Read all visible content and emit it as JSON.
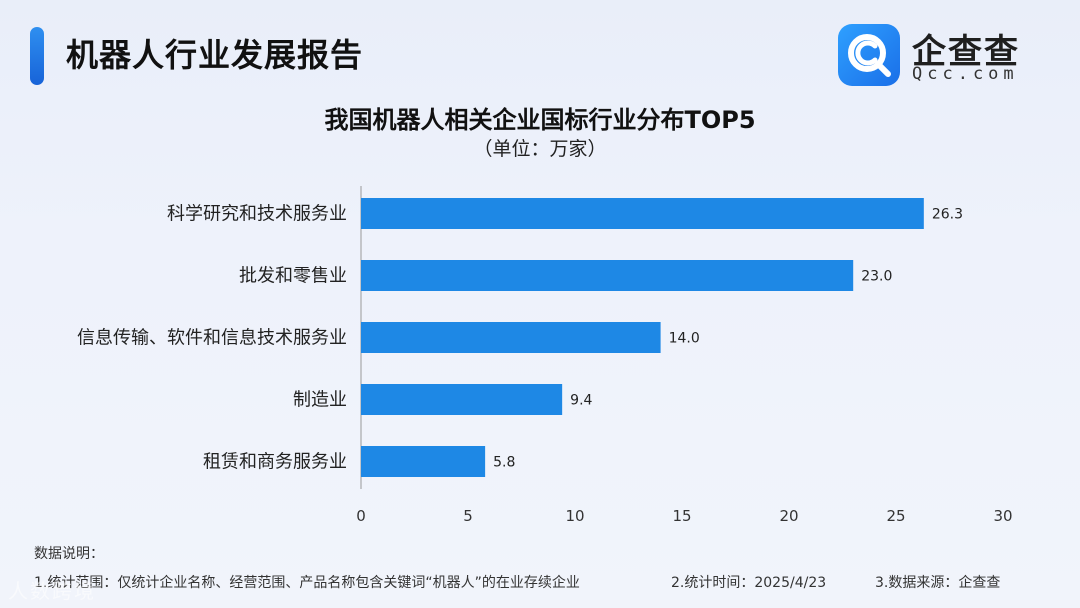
{
  "header": {
    "report_title": "机器人行业发展报告",
    "logo_name": "企查查",
    "logo_domain": "Qcc.com"
  },
  "colors": {
    "accent": "#1a73e8",
    "bar": "#1e88e5",
    "logo_blue": "#2196f3"
  },
  "chart_data": {
    "type": "bar",
    "orientation": "horizontal",
    "title": "我国机器人相关企业国标行业分布TOP5",
    "subtitle": "（单位：万家）",
    "categories": [
      "科学研究和技术服务业",
      "批发和零售业",
      "信息传输、软件和信息技术服务业",
      "制造业",
      "租赁和商务服务业"
    ],
    "values": [
      26.3,
      23.0,
      14.0,
      9.4,
      5.8
    ],
    "value_labels": [
      "26.3",
      "23.0",
      "14.0",
      "9.4",
      "5.8"
    ],
    "xlim": [
      0,
      30
    ],
    "xticks": [
      0,
      5,
      10,
      15,
      20,
      25,
      30
    ],
    "grid": false,
    "legend": "none"
  },
  "footer": {
    "notes_title": "数据说明：",
    "notes": [
      "1.统计范围：仅统计企业名称、经营范围、产品名称包含关键词“机器人”的在业存续企业",
      "2.统计时间：2025/4/23",
      "3.数据来源：企查查"
    ],
    "watermark": "人数跨境"
  }
}
